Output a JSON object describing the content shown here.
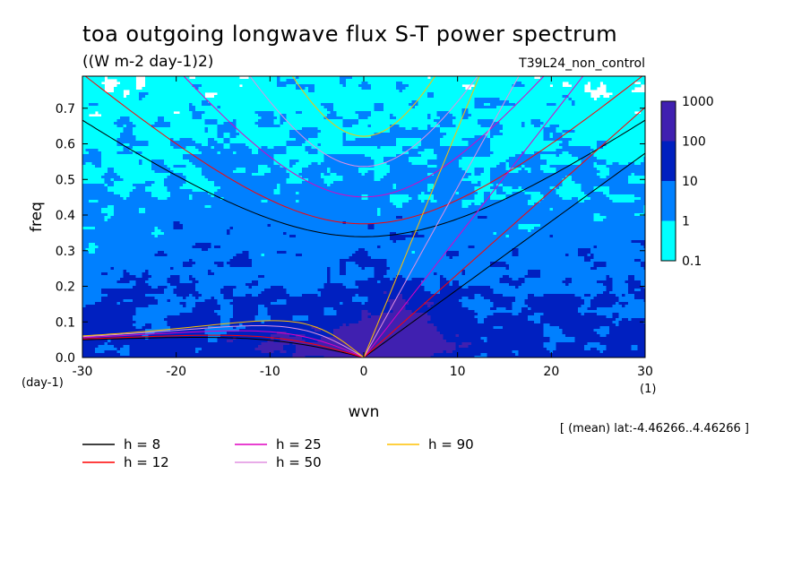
{
  "chart_data": {
    "type": "heatmap",
    "title": "toa outgoing longwave flux S-T power spectrum",
    "subtitle": "((W m-2 day-1)2)",
    "experiment": "T39L24_non_control",
    "xlabel": "wvn",
    "ylabel": "freq",
    "x_unit": "(1)",
    "y_unit": "(day-1)",
    "xlim": [
      -30,
      30
    ],
    "ylim": [
      0,
      0.79
    ],
    "xticks": [
      "-30",
      "-20",
      "-10",
      "0",
      "10",
      "20",
      "30"
    ],
    "yticks": [
      "0.0",
      "0.1",
      "0.2",
      "0.3",
      "0.4",
      "0.5",
      "0.6",
      "0.7"
    ],
    "grid": false,
    "colorbar": {
      "levels": [
        "0.1",
        "1",
        "10",
        "100",
        "1000"
      ],
      "colors": [
        "#00ffff",
        "#0080ff",
        "#0020c0",
        "#4020b0"
      ]
    },
    "footnote": "[ (mean) lat:-4.46266..4.46266 ]",
    "dispersion_curves": [
      {
        "label": "h =  8",
        "equivalent_depth_m": 8,
        "color": "#000000"
      },
      {
        "label": "h = 12",
        "equivalent_depth_m": 12,
        "color": "#ff0000"
      },
      {
        "label": "h = 25",
        "equivalent_depth_m": 25,
        "color": "#e000c0"
      },
      {
        "label": "h = 50",
        "equivalent_depth_m": 50,
        "color": "#e090e0"
      },
      {
        "label": "h = 90",
        "equivalent_depth_m": 90,
        "color": "#ffc000"
      }
    ]
  }
}
